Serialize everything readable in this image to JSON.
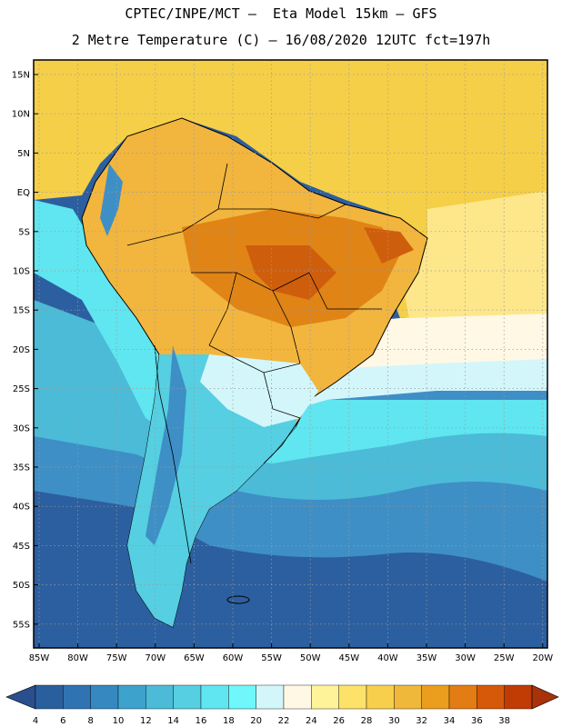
{
  "header": {
    "line1": "CPTEC/INPE/MCT –  Eta Model 15km – GFS",
    "line2": "2 Metre Temperature (C) – 16/08/2020 12UTC fct=197h"
  },
  "axes": {
    "lat_labels": [
      "15N",
      "10N",
      "5N",
      "EQ",
      "5S",
      "10S",
      "15S",
      "20S",
      "25S",
      "30S",
      "35S",
      "40S",
      "45S",
      "50S",
      "55S"
    ],
    "lon_labels": [
      "85W",
      "80W",
      "75W",
      "70W",
      "65W",
      "60W",
      "55W",
      "50W",
      "45W",
      "40W",
      "35W",
      "30W",
      "25W",
      "20W"
    ]
  },
  "colorbar": {
    "ticks": [
      "4",
      "6",
      "8",
      "10",
      "12",
      "14",
      "16",
      "18",
      "20",
      "22",
      "24",
      "26",
      "28",
      "30",
      "32",
      "34",
      "36",
      "38"
    ],
    "colors": [
      "#2a5f9e",
      "#2f73b2",
      "#3589c0",
      "#3da2cc",
      "#4bbbd7",
      "#55cfe1",
      "#5fe6f0",
      "#6ff7fb",
      "#d3f6fb",
      "#fff8e5",
      "#fff39a",
      "#fde26a",
      "#f7cf4d",
      "#f0b83a",
      "#eb9e1e",
      "#e47c14",
      "#d6590a",
      "#c03c04"
    ],
    "left_arrow": "#2a4f8e",
    "right_arrow": "#a8320a"
  },
  "colors": {
    "deep_ocean": "#2c5f9f",
    "mid_ocean": "#3e8fc6",
    "cool_ocean": "#55cfe1",
    "cyan": "#5fe6f0",
    "pale": "#d3f6fb",
    "cream": "#fff8e5",
    "warm_sea": "#f8dc6a",
    "land_warm": "#f2b53e",
    "land_hot": "#e08416",
    "land_hottest": "#cf5e0c"
  }
}
